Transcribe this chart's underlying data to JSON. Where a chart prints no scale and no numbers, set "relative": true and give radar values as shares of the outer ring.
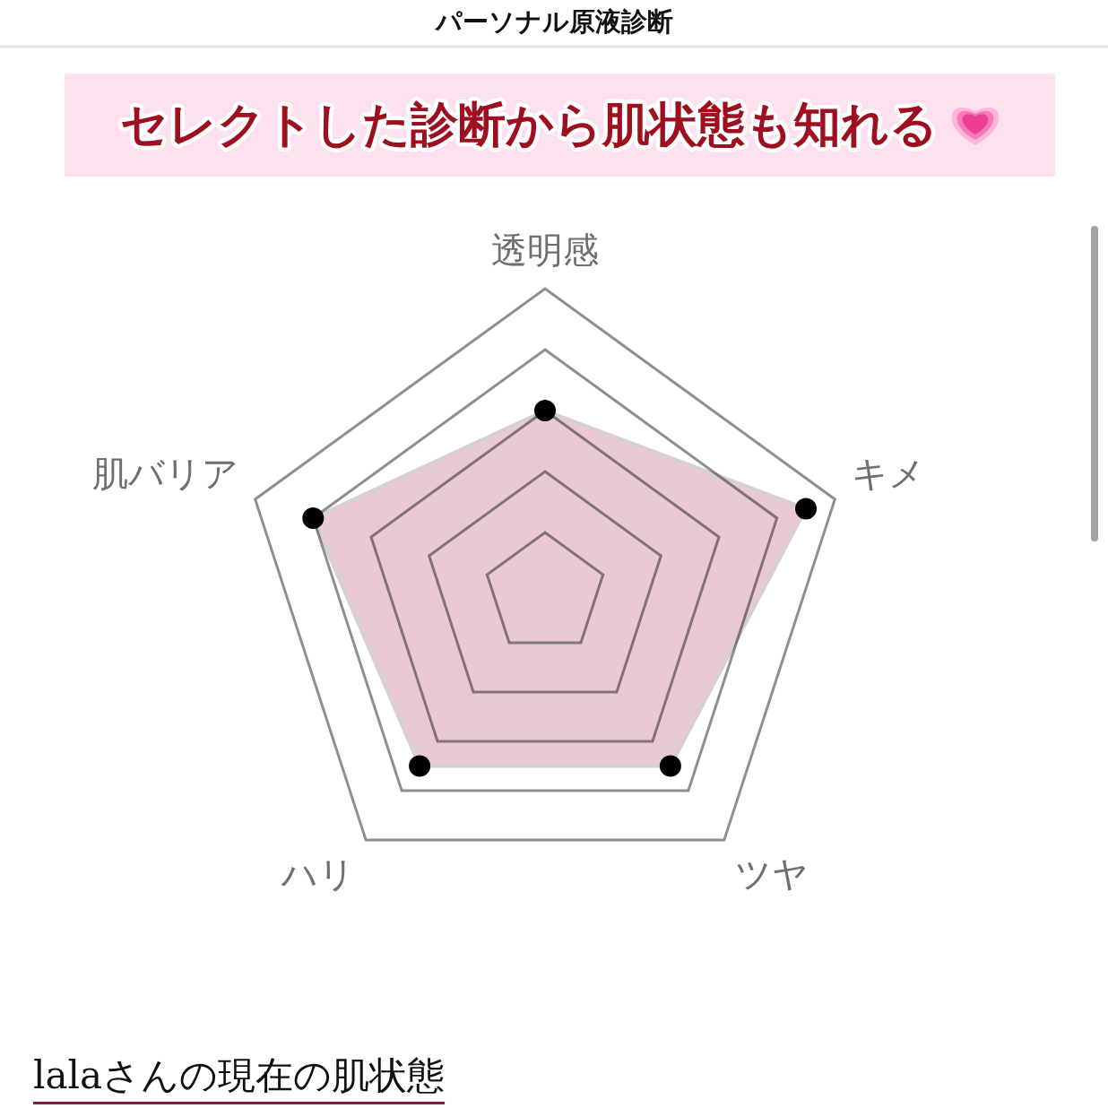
{
  "chart_data": {
    "type": "radar",
    "title": "パーソナル原液診断",
    "subtitle": "セレクトした診断から肌状態も知れる",
    "categories": [
      "透明感",
      "キメ",
      "ツヤ",
      "ハリ",
      "肌バリア"
    ],
    "relative": true,
    "series": [
      {
        "color": "#e8c9d5",
        "values": [
          0.6,
          0.9,
          0.7,
          0.7,
          0.8
        ]
      }
    ],
    "marker": "circle",
    "grid": true,
    "annotations": [
      "lalaさんの現在の肌状態"
    ]
  }
}
